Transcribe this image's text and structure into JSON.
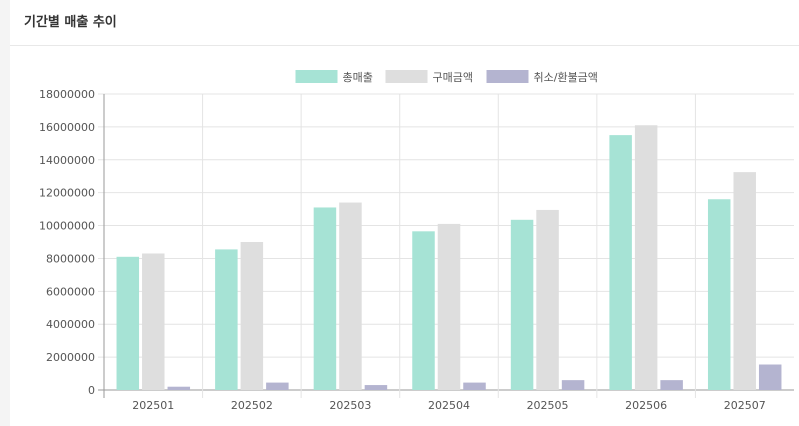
{
  "header": {
    "title": "기간별 매출 추이"
  },
  "chart_data": {
    "type": "bar",
    "categories": [
      "202501",
      "202502",
      "202503",
      "202504",
      "202505",
      "202506",
      "202507"
    ],
    "series": [
      {
        "name": "총매출",
        "color": "#a6e3d5",
        "values": [
          8100000,
          8550000,
          11100000,
          9650000,
          10350000,
          15500000,
          11600000
        ]
      },
      {
        "name": "구매금액",
        "color": "#dedede",
        "values": [
          8300000,
          9000000,
          11400000,
          10100000,
          10950000,
          16100000,
          13250000
        ]
      },
      {
        "name": "취소/환불금액",
        "color": "#b4b4d0",
        "values": [
          200000,
          450000,
          300000,
          450000,
          600000,
          600000,
          1550000
        ]
      }
    ],
    "ylim": [
      0,
      18000000
    ],
    "yticks": [
      0,
      2000000,
      4000000,
      6000000,
      8000000,
      10000000,
      12000000,
      14000000,
      16000000,
      18000000
    ],
    "grid": true,
    "legend": "top-center"
  }
}
